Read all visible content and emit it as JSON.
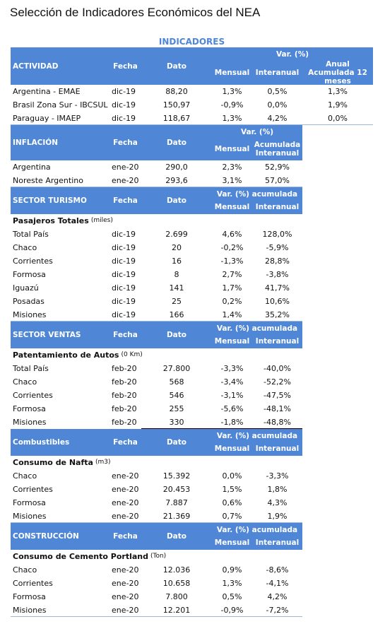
{
  "title": "Selección de Indicadores Económicos del NEA",
  "banner": "INDICADORES",
  "sections": [
    {
      "header": {
        "label": "ACTIVIDAD",
        "fecha": "Fecha",
        "dato": "Dato",
        "group": "Var. (%)",
        "cols": [
          "Mensual",
          "Interanual",
          "Anual Acumulada 12 meses"
        ]
      },
      "rows": [
        [
          "Argentina - EMAE",
          "dic-19",
          "88,20",
          "1,3%",
          "0,5%",
          "1,3%"
        ],
        [
          "Brasil Zona Sur - IBCSUL",
          "dic-19",
          "150,97",
          "-0,9%",
          "0,0%",
          "1,9%"
        ],
        [
          "Paraguay  - IMAEP",
          "dic-19",
          "118,67",
          "1,3%",
          "4,2%",
          "0,0%"
        ]
      ]
    },
    {
      "header": {
        "label": "INFLACIÓN",
        "fecha": "Fecha",
        "dato": "Dato",
        "group": "Var. (%)",
        "cols": [
          "Mensual",
          "Acumulada Interanual"
        ]
      },
      "rows": [
        [
          "Argentina",
          "ene-20",
          "290,0",
          "2,3%",
          "52,9%"
        ],
        [
          "Noreste Argentino",
          "ene-20",
          "293,6",
          "3,1%",
          "57,0%"
        ]
      ]
    },
    {
      "header": {
        "label": "SECTOR TURISMO",
        "fecha": "Fecha",
        "dato": "Dato",
        "group": "Var. (%) acumulada",
        "cols": [
          "Mensual",
          "Interanual"
        ]
      },
      "subtitle": {
        "main": "Pasajeros Totales",
        "unit": "(miles)"
      },
      "rows": [
        [
          "Total País",
          "dic-19",
          "2.699",
          "4,6%",
          "128,0%"
        ],
        [
          "Chaco",
          "dic-19",
          "20",
          "-0,2%",
          "-5,9%"
        ],
        [
          "Corrientes",
          "dic-19",
          "16",
          "-1,3%",
          "28,8%"
        ],
        [
          "Formosa",
          "dic-19",
          "8",
          "2,7%",
          "-3,8%"
        ],
        [
          "Iguazú",
          "dic-19",
          "141",
          "1,7%",
          "41,7%"
        ],
        [
          "Posadas",
          "dic-19",
          "25",
          "0,2%",
          "10,6%"
        ],
        [
          "Misiones",
          "dic-19",
          "166",
          "1,4%",
          "35,2%"
        ]
      ]
    },
    {
      "header": {
        "label": "SECTOR VENTAS",
        "fecha": "Fecha",
        "dato": "Dato",
        "group": "Var. (%) acumulada",
        "cols": [
          "Mensual",
          "Interanual"
        ]
      },
      "subtitle": {
        "main": "Patentamiento de Autos",
        "unit": "(0 Km)"
      },
      "rows": [
        [
          "Total País",
          "feb-20",
          "27.800",
          "-3,3%",
          "-40,0%"
        ],
        [
          "Chaco",
          "feb-20",
          "568",
          "-3,4%",
          "-52,2%"
        ],
        [
          "Corrientes",
          "feb-20",
          "546",
          "-3,1%",
          "-47,5%"
        ],
        [
          "Formosa",
          "feb-20",
          "255",
          "-5,6%",
          "-48,1%"
        ],
        [
          "Misiones",
          "feb-20",
          "330",
          "-1,8%",
          "-48,8%"
        ]
      ]
    },
    {
      "header": {
        "label": "Combustibles",
        "fecha": "Fecha",
        "dato": "Dato",
        "group": "Var. (%) acumulada",
        "cols": [
          "Mensual",
          "Interanual"
        ]
      },
      "subtitle": {
        "main": "Consumo de Nafta",
        "unit": "(m3)"
      },
      "rows": [
        [
          "Chaco",
          "ene-20",
          "15.392",
          "0,0%",
          "-3,3%"
        ],
        [
          "Corrientes",
          "ene-20",
          "20.453",
          "1,5%",
          "1,8%"
        ],
        [
          "Formosa",
          "ene-20",
          "7.887",
          "0,6%",
          "4,3%"
        ],
        [
          "Misiones",
          "ene-20",
          "21.369",
          "0,7%",
          "1,9%"
        ]
      ]
    },
    {
      "header": {
        "label": "CONSTRUCCIÓN",
        "fecha": "Fecha",
        "dato": "Dato",
        "group": "Var. (%) acumulada",
        "cols": [
          "Mensual",
          "Interanual"
        ]
      },
      "subtitle": {
        "main": "Consumo de Cemento Portland",
        "unit": "(Ton)"
      },
      "rows": [
        [
          "Chaco",
          "ene-20",
          "12.036",
          "0,9%",
          "-8,6%"
        ],
        [
          "Corrientes",
          "ene-20",
          "10.658",
          "1,3%",
          "-4,1%"
        ],
        [
          "Formosa",
          "ene-20",
          "7.800",
          "0,5%",
          "4,2%"
        ],
        [
          "Misiones",
          "ene-20",
          "12.201",
          "-0,9%",
          "-7,2%"
        ]
      ]
    }
  ]
}
